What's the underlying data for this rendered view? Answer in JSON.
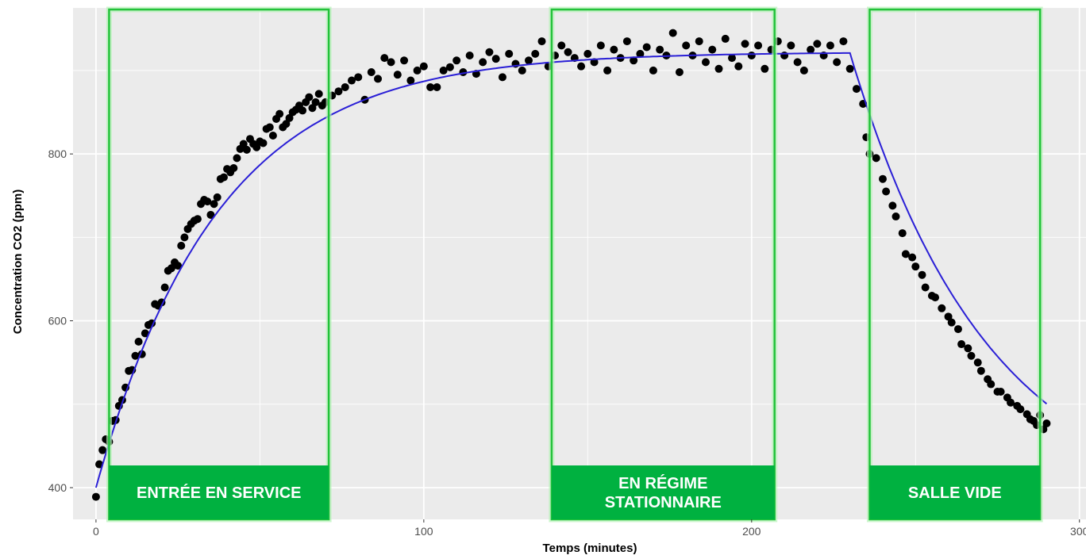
{
  "chart_data": {
    "type": "scatter",
    "title": "",
    "xlabel": "Temps (minutes)",
    "ylabel": "Concentration CO2 (ppm)",
    "xlim": [
      -7,
      302
    ],
    "ylim": [
      362,
      975
    ],
    "x_ticks": [
      0,
      100,
      200,
      300
    ],
    "x_tick_labels": [
      "0",
      "100",
      "200",
      "300"
    ],
    "y_ticks": [
      400,
      600,
      800
    ],
    "y_tick_labels": [
      "400",
      "600",
      "800"
    ],
    "grid": true,
    "legend": "none",
    "colors": {
      "panel": "#ebebeb",
      "grid": "#ffffff",
      "points": "#000000",
      "fit_line": "#2a1fd6",
      "phase_box": "#22c23a",
      "phase_label_bg": "#00b140"
    },
    "model": {
      "rise_start_min": 0,
      "baseline_ppm": 400,
      "plateau_ppm": 922,
      "rise_time_constant_min": 37,
      "decay_start_min": 230,
      "decay_floor_ppm": 368,
      "decay_time_constant_min": 42
    },
    "series": [
      {
        "type": "points",
        "values": [
          [
            0,
            389
          ],
          [
            1,
            428
          ],
          [
            2,
            445
          ],
          [
            3,
            458
          ],
          [
            4,
            455
          ],
          [
            5,
            480
          ],
          [
            6,
            481
          ],
          [
            7,
            498
          ],
          [
            8,
            505
          ],
          [
            9,
            520
          ],
          [
            10,
            540
          ],
          [
            11,
            541
          ],
          [
            12,
            558
          ],
          [
            13,
            575
          ],
          [
            14,
            560
          ],
          [
            15,
            585
          ],
          [
            16,
            595
          ],
          [
            17,
            597
          ],
          [
            18,
            620
          ],
          [
            19,
            618
          ],
          [
            20,
            622
          ],
          [
            21,
            640
          ],
          [
            22,
            660
          ],
          [
            23,
            663
          ],
          [
            24,
            670
          ],
          [
            25,
            666
          ],
          [
            26,
            690
          ],
          [
            27,
            700
          ],
          [
            28,
            710
          ],
          [
            29,
            716
          ],
          [
            30,
            720
          ],
          [
            31,
            722
          ],
          [
            32,
            740
          ],
          [
            33,
            745
          ],
          [
            34,
            743
          ],
          [
            35,
            727
          ],
          [
            36,
            740
          ],
          [
            37,
            748
          ],
          [
            38,
            770
          ],
          [
            39,
            772
          ],
          [
            40,
            782
          ],
          [
            41,
            778
          ],
          [
            42,
            783
          ],
          [
            43,
            795
          ],
          [
            44,
            806
          ],
          [
            45,
            812
          ],
          [
            46,
            805
          ],
          [
            47,
            818
          ],
          [
            48,
            812
          ],
          [
            49,
            808
          ],
          [
            50,
            815
          ],
          [
            51,
            813
          ],
          [
            52,
            830
          ],
          [
            53,
            832
          ],
          [
            54,
            822
          ],
          [
            55,
            842
          ],
          [
            56,
            848
          ],
          [
            57,
            832
          ],
          [
            58,
            836
          ],
          [
            59,
            843
          ],
          [
            60,
            850
          ],
          [
            61,
            853
          ],
          [
            62,
            858
          ],
          [
            63,
            852
          ],
          [
            64,
            862
          ],
          [
            65,
            868
          ],
          [
            66,
            855
          ],
          [
            67,
            862
          ],
          [
            68,
            872
          ],
          [
            69,
            858
          ],
          [
            70,
            862
          ],
          [
            72,
            870
          ],
          [
            74,
            875
          ],
          [
            76,
            880
          ],
          [
            78,
            888
          ],
          [
            80,
            892
          ],
          [
            82,
            865
          ],
          [
            84,
            898
          ],
          [
            86,
            890
          ],
          [
            88,
            915
          ],
          [
            90,
            910
          ],
          [
            92,
            895
          ],
          [
            94,
            912
          ],
          [
            96,
            888
          ],
          [
            98,
            900
          ],
          [
            100,
            905
          ],
          [
            102,
            880
          ],
          [
            104,
            880
          ],
          [
            106,
            900
          ],
          [
            108,
            904
          ],
          [
            110,
            912
          ],
          [
            112,
            898
          ],
          [
            114,
            918
          ],
          [
            116,
            896
          ],
          [
            118,
            910
          ],
          [
            120,
            922
          ],
          [
            122,
            914
          ],
          [
            124,
            892
          ],
          [
            126,
            920
          ],
          [
            128,
            908
          ],
          [
            130,
            900
          ],
          [
            132,
            912
          ],
          [
            134,
            920
          ],
          [
            136,
            935
          ],
          [
            138,
            905
          ],
          [
            140,
            918
          ],
          [
            142,
            930
          ],
          [
            144,
            922
          ],
          [
            146,
            915
          ],
          [
            148,
            905
          ],
          [
            150,
            920
          ],
          [
            152,
            910
          ],
          [
            154,
            930
          ],
          [
            156,
            900
          ],
          [
            158,
            925
          ],
          [
            160,
            915
          ],
          [
            162,
            935
          ],
          [
            164,
            912
          ],
          [
            166,
            920
          ],
          [
            168,
            928
          ],
          [
            170,
            900
          ],
          [
            172,
            925
          ],
          [
            174,
            918
          ],
          [
            176,
            945
          ],
          [
            178,
            898
          ],
          [
            180,
            930
          ],
          [
            182,
            918
          ],
          [
            184,
            935
          ],
          [
            186,
            910
          ],
          [
            188,
            925
          ],
          [
            190,
            902
          ],
          [
            192,
            938
          ],
          [
            194,
            915
          ],
          [
            196,
            905
          ],
          [
            198,
            932
          ],
          [
            200,
            918
          ],
          [
            202,
            930
          ],
          [
            204,
            902
          ],
          [
            206,
            925
          ],
          [
            208,
            935
          ],
          [
            210,
            918
          ],
          [
            212,
            930
          ],
          [
            214,
            910
          ],
          [
            216,
            900
          ],
          [
            218,
            925
          ],
          [
            220,
            932
          ],
          [
            222,
            918
          ],
          [
            224,
            930
          ],
          [
            226,
            910
          ],
          [
            228,
            935
          ],
          [
            230,
            902
          ],
          [
            232,
            878
          ],
          [
            234,
            860
          ],
          [
            235,
            820
          ],
          [
            236,
            800
          ],
          [
            238,
            795
          ],
          [
            240,
            770
          ],
          [
            241,
            755
          ],
          [
            243,
            738
          ],
          [
            244,
            725
          ],
          [
            246,
            705
          ],
          [
            247,
            680
          ],
          [
            249,
            676
          ],
          [
            250,
            665
          ],
          [
            252,
            655
          ],
          [
            253,
            640
          ],
          [
            255,
            630
          ],
          [
            256,
            628
          ],
          [
            258,
            615
          ],
          [
            260,
            605
          ],
          [
            261,
            598
          ],
          [
            263,
            590
          ],
          [
            264,
            572
          ],
          [
            266,
            567
          ],
          [
            267,
            558
          ],
          [
            269,
            550
          ],
          [
            270,
            540
          ],
          [
            272,
            530
          ],
          [
            273,
            524
          ],
          [
            275,
            515
          ],
          [
            276,
            515
          ],
          [
            278,
            508
          ],
          [
            279,
            502
          ],
          [
            281,
            498
          ],
          [
            282,
            494
          ],
          [
            284,
            488
          ],
          [
            285,
            482
          ],
          [
            286,
            480
          ],
          [
            287,
            475
          ],
          [
            288,
            487
          ],
          [
            289,
            470
          ],
          [
            290,
            477
          ]
        ]
      },
      {
        "type": "fit_line",
        "values": []
      }
    ],
    "annotations": [
      {
        "x_start": 4,
        "x_end": 71,
        "lines": [
          "ENTRÉE EN SERVICE"
        ]
      },
      {
        "x_start": 139,
        "x_end": 207,
        "lines": [
          "EN RÉGIME",
          "STATIONNAIRE"
        ]
      },
      {
        "x_start": 236,
        "x_end": 288,
        "lines": [
          "SALLE VIDE"
        ]
      }
    ]
  }
}
